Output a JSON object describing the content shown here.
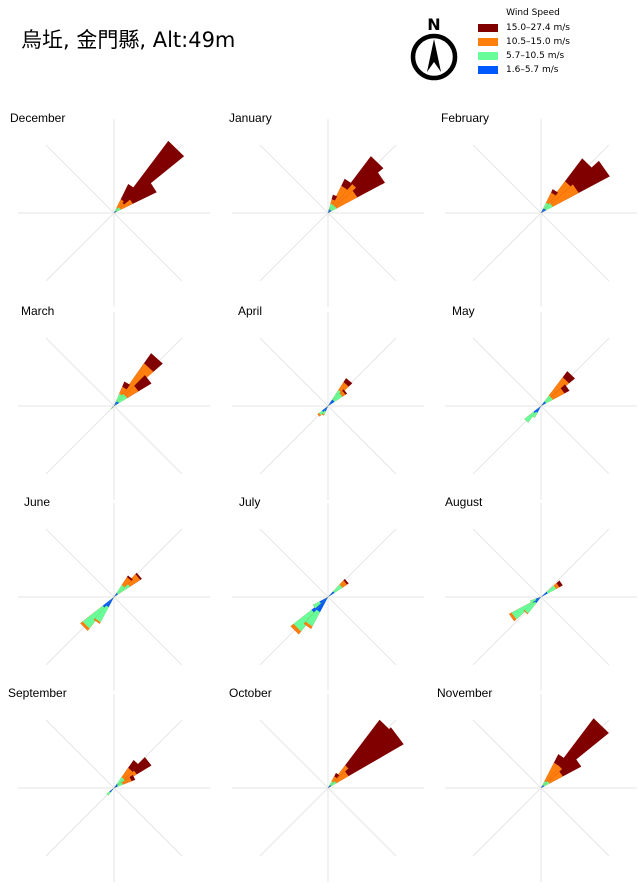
{
  "title": "烏坵, 金門縣, Alt:49m",
  "north_label": "N",
  "legend": {
    "title": "Wind Speed",
    "items": [
      {
        "label": "15.0–27.4 m/s",
        "color": "#800000"
      },
      {
        "label": "10.5–15.0 m/s",
        "color": "#ff7f0e"
      },
      {
        "label": "5.7–10.5 m/s",
        "color": "#66ff99"
      },
      {
        "label": "1.6–5.7 m/s",
        "color": "#0059ff"
      }
    ]
  },
  "chart_data": {
    "type": "windrose",
    "units": "relative frequency (fraction of radius)",
    "speed_bins": [
      "1.6–5.7 m/s",
      "5.7–10.5 m/s",
      "10.5–15.0 m/s",
      "15.0–27.4 m/s"
    ],
    "panels": [
      {
        "month": "December",
        "petals": [
          {
            "dir": 44,
            "stack": [
              0.03,
              0.08,
              0.14,
              0.95
            ]
          },
          {
            "dir": 57,
            "stack": [
              0.03,
              0.08,
              0.22,
              0.5
            ]
          },
          {
            "dir": 33,
            "stack": [
              0.02,
              0.06,
              0.16,
              0.34
            ]
          }
        ]
      },
      {
        "month": "January",
        "petals": [
          {
            "dir": 44,
            "stack": [
              0.04,
              0.1,
              0.4,
              0.75
            ]
          },
          {
            "dir": 55,
            "stack": [
              0.04,
              0.1,
              0.35,
              0.68
            ]
          },
          {
            "dir": 33,
            "stack": [
              0.04,
              0.1,
              0.32,
              0.4
            ]
          },
          {
            "dir": 22,
            "stack": [
              0.04,
              0.1,
              0.15,
              0.2
            ]
          }
        ]
      },
      {
        "month": "February",
        "petals": [
          {
            "dir": 44,
            "stack": [
              0.06,
              0.14,
              0.42,
              0.72
            ]
          },
          {
            "dir": 55,
            "stack": [
              0.06,
              0.14,
              0.45,
              0.82
            ]
          },
          {
            "dir": 33,
            "stack": [
              0.05,
              0.12,
              0.24,
              0.28
            ]
          }
        ]
      },
      {
        "month": "March",
        "petals": [
          {
            "dir": 42,
            "stack": [
              0.06,
              0.16,
              0.55,
              0.68
            ]
          },
          {
            "dir": 52,
            "stack": [
              0.06,
              0.16,
              0.3,
              0.46
            ]
          },
          {
            "dir": 30,
            "stack": [
              0.05,
              0.14,
              0.22,
              0.28
            ]
          },
          {
            "dir": 225,
            "stack": [
              0.02,
              0.04,
              0.04,
              0.04
            ]
          }
        ]
      },
      {
        "month": "April",
        "petals": [
          {
            "dir": 40,
            "stack": [
              0.08,
              0.2,
              0.3,
              0.35
            ]
          },
          {
            "dir": 50,
            "stack": [
              0.08,
              0.18,
              0.22,
              0.24
            ]
          },
          {
            "dir": 225,
            "stack": [
              0.08,
              0.12,
              0.14,
              0.14
            ]
          },
          {
            "dir": 210,
            "stack": [
              0.06,
              0.1,
              0.11,
              0.11
            ]
          }
        ]
      },
      {
        "month": "May",
        "petals": [
          {
            "dir": 44,
            "stack": [
              0.06,
              0.14,
              0.38,
              0.46
            ]
          },
          {
            "dir": 55,
            "stack": [
              0.06,
              0.14,
              0.28,
              0.34
            ]
          },
          {
            "dir": 225,
            "stack": [
              0.1,
              0.22,
              0.22,
              0.22
            ]
          },
          {
            "dir": 215,
            "stack": [
              0.08,
              0.14,
              0.14,
              0.14
            ]
          }
        ]
      },
      {
        "month": "June",
        "petals": [
          {
            "dir": 50,
            "stack": [
              0.05,
              0.2,
              0.33,
              0.35
            ]
          },
          {
            "dir": 40,
            "stack": [
              0.05,
              0.15,
              0.25,
              0.27
            ]
          },
          {
            "dir": 225,
            "stack": [
              0.15,
              0.42,
              0.45,
              0.45
            ]
          },
          {
            "dir": 215,
            "stack": [
              0.12,
              0.3,
              0.32,
              0.32
            ]
          }
        ]
      },
      {
        "month": "July",
        "petals": [
          {
            "dir": 50,
            "stack": [
              0.08,
              0.18,
              0.24,
              0.26
            ]
          },
          {
            "dir": 225,
            "stack": [
              0.22,
              0.46,
              0.5,
              0.5
            ]
          },
          {
            "dir": 215,
            "stack": [
              0.18,
              0.35,
              0.38,
              0.38
            ]
          },
          {
            "dir": 235,
            "stack": [
              0.1,
              0.18,
              0.18,
              0.18
            ]
          }
        ]
      },
      {
        "month": "August",
        "petals": [
          {
            "dir": 55,
            "stack": [
              0.08,
              0.18,
              0.22,
              0.26
            ]
          },
          {
            "dir": 235,
            "stack": [
              0.1,
              0.35,
              0.38,
              0.38
            ]
          },
          {
            "dir": 225,
            "stack": [
              0.08,
              0.22,
              0.23,
              0.23
            ]
          },
          {
            "dir": 245,
            "stack": [
              0.06,
              0.12,
              0.12,
              0.12
            ]
          }
        ]
      },
      {
        "month": "September",
        "petals": [
          {
            "dir": 52,
            "stack": [
              0.05,
              0.14,
              0.28,
              0.46
            ]
          },
          {
            "dir": 42,
            "stack": [
              0.05,
              0.14,
              0.26,
              0.36
            ]
          },
          {
            "dir": 62,
            "stack": [
              0.04,
              0.1,
              0.2,
              0.24
            ]
          },
          {
            "dir": 225,
            "stack": [
              0.06,
              0.1,
              0.1,
              0.1
            ]
          }
        ]
      },
      {
        "month": "October",
        "petals": [
          {
            "dir": 44,
            "stack": [
              0.04,
              0.1,
              0.3,
              0.9
            ]
          },
          {
            "dir": 53,
            "stack": [
              0.04,
              0.1,
              0.25,
              0.92
            ]
          },
          {
            "dir": 35,
            "stack": [
              0.03,
              0.08,
              0.14,
              0.18
            ]
          }
        ]
      },
      {
        "month": "November",
        "petals": [
          {
            "dir": 44,
            "stack": [
              0.04,
              0.1,
              0.3,
              0.92
            ]
          },
          {
            "dir": 55,
            "stack": [
              0.04,
              0.1,
              0.26,
              0.48
            ]
          },
          {
            "dir": 34,
            "stack": [
              0.03,
              0.08,
              0.3,
              0.4
            ]
          }
        ]
      }
    ]
  }
}
